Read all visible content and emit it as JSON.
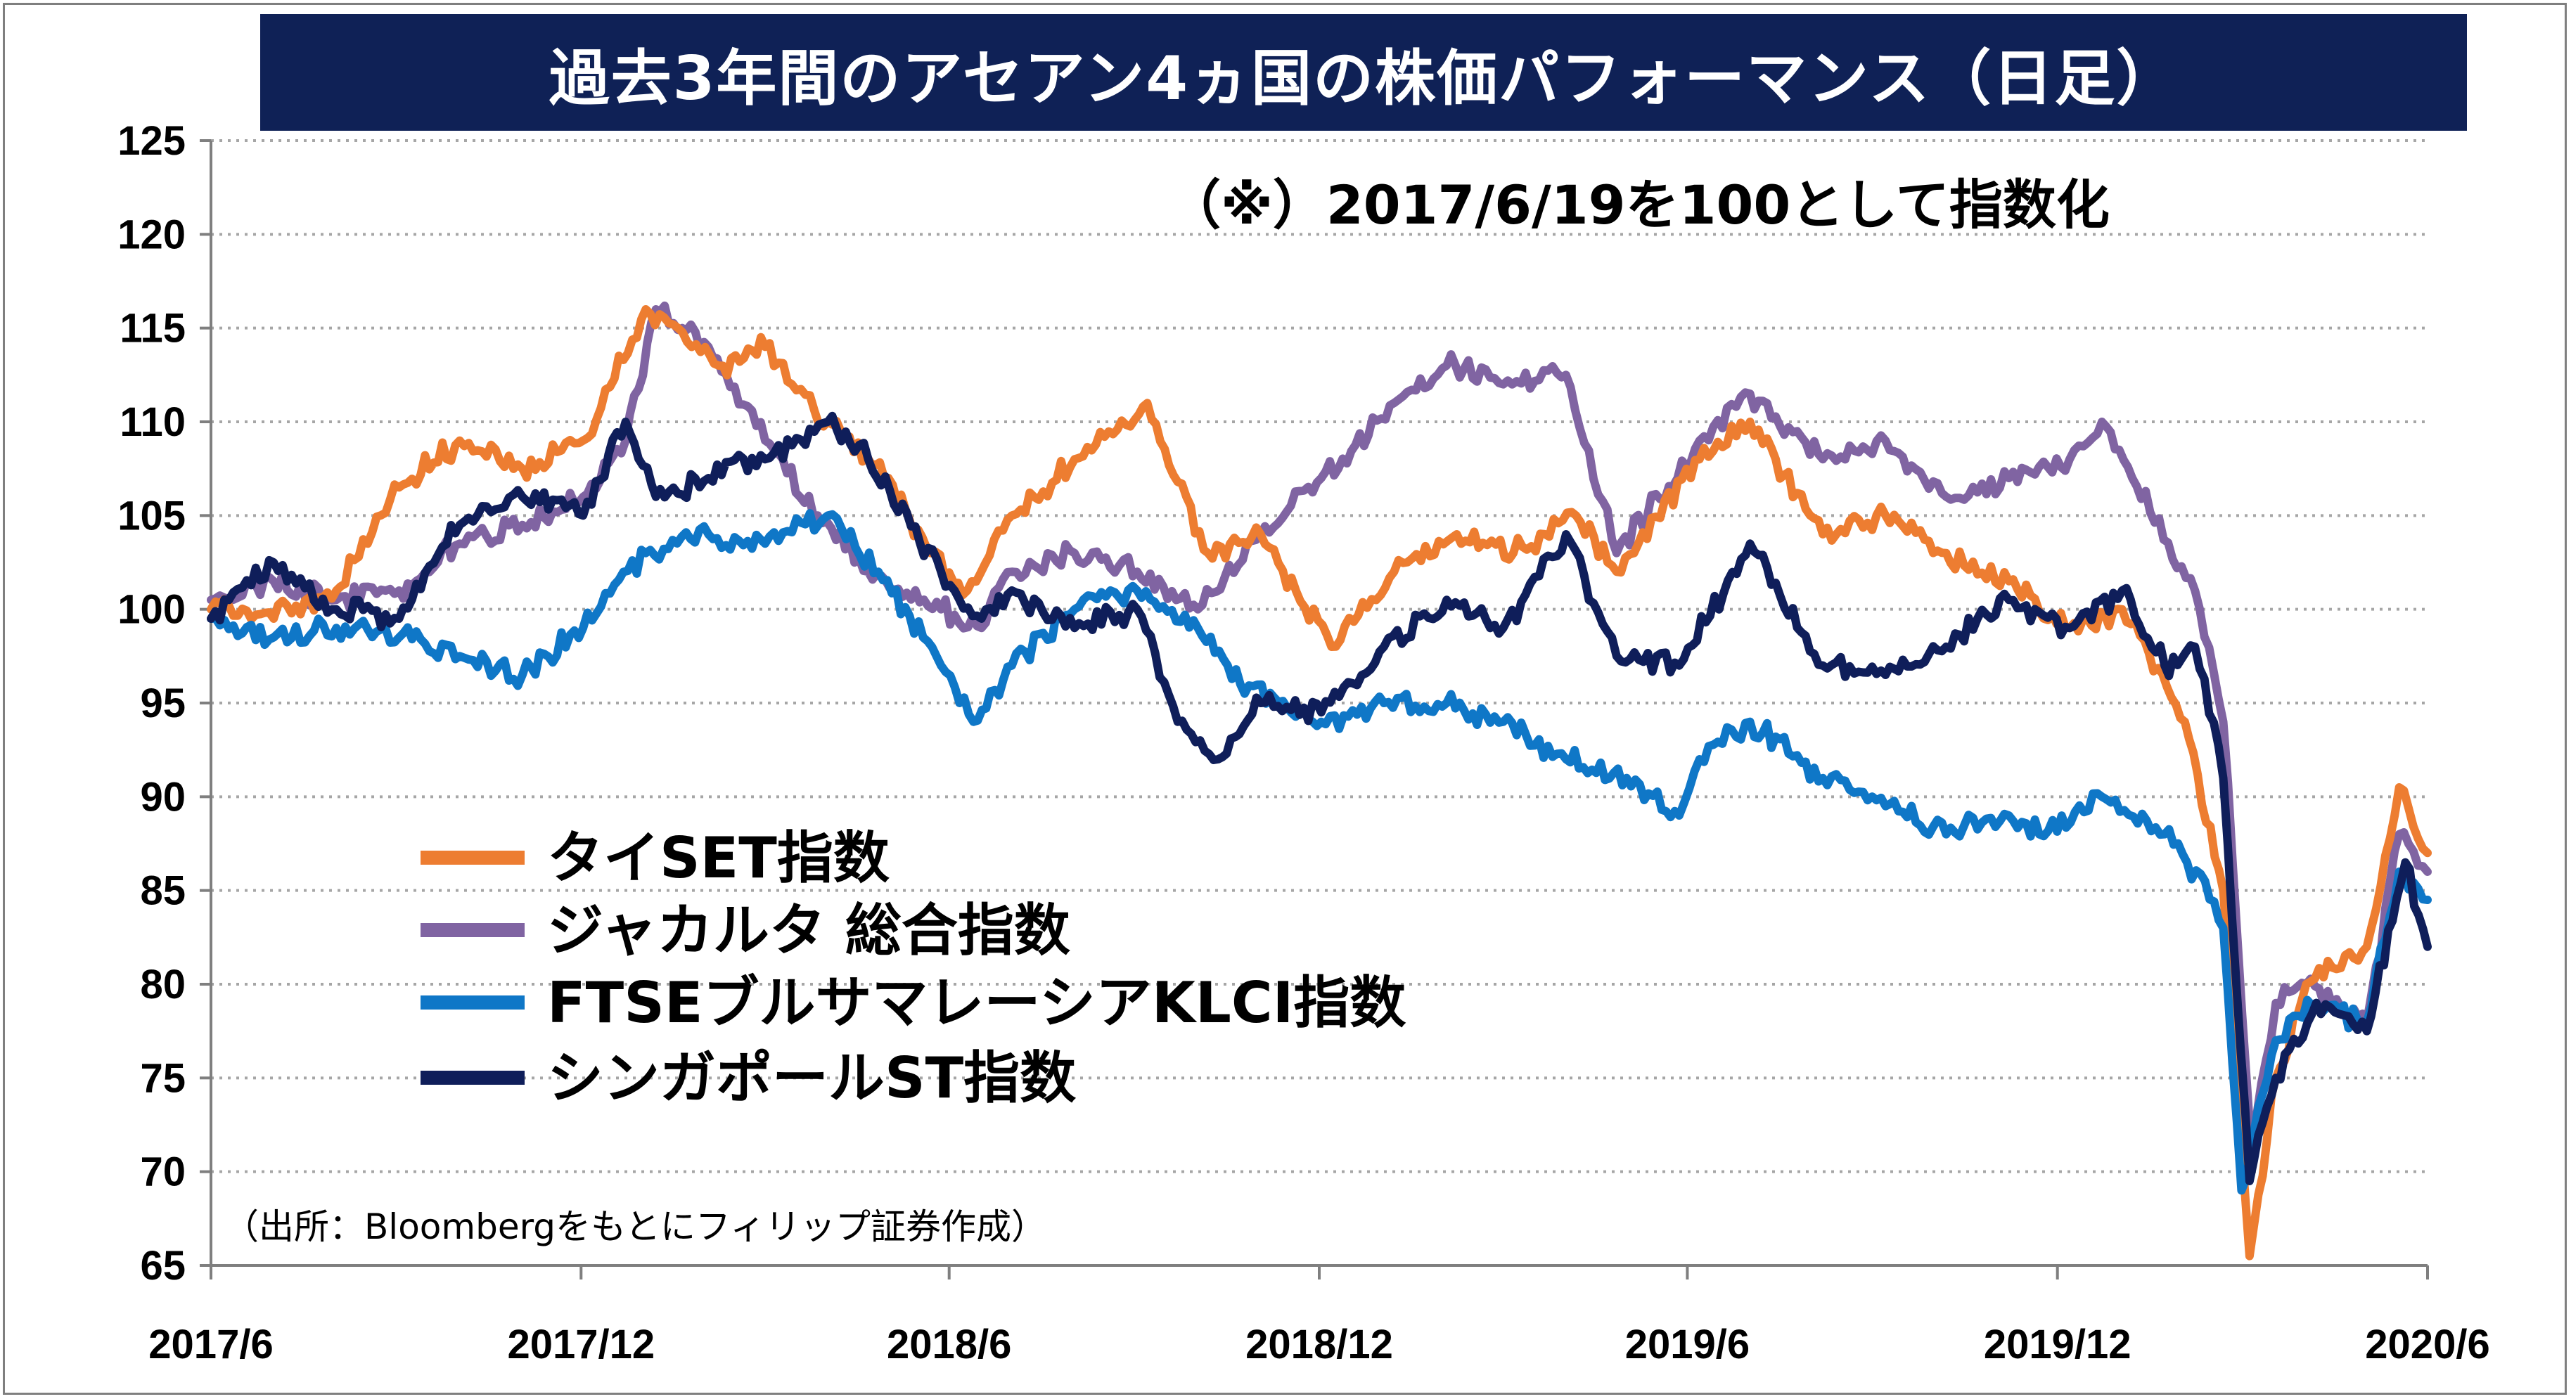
{
  "title": "過去3年間のアセアン4ヵ国の株価パフォーマンス（日足）",
  "note": "（※）2017/6/19を100として指数化",
  "source": "（出所：Bloombergをもとにフィリップ証券作成）",
  "colors": {
    "title_background": "#0f2156",
    "frame": "#7f7f7f",
    "grid": "#a6a6a6"
  },
  "chart_data": {
    "type": "line",
    "grid": true,
    "grid_style": "dotted horizontal",
    "legend_position": "center-left",
    "ylim": [
      65,
      125
    ],
    "yticks": [
      65,
      70,
      75,
      80,
      85,
      90,
      95,
      100,
      105,
      110,
      115,
      120,
      125
    ],
    "xlim": [
      "2017-06-19",
      "2020-06-19"
    ],
    "xticks": [
      {
        "date": "2017-06-19",
        "label": "2017/6"
      },
      {
        "date": "2017-12-19",
        "label": "2017/12"
      },
      {
        "date": "2018-06-19",
        "label": "2018/6"
      },
      {
        "date": "2018-12-19",
        "label": "2018/12"
      },
      {
        "date": "2019-06-19",
        "label": "2019/6"
      },
      {
        "date": "2019-12-19",
        "label": "2019/12"
      },
      {
        "date": "2020-06-19",
        "label": "2020/6"
      }
    ],
    "series": [
      {
        "name": "タイSET指数",
        "color": "#ed7d31",
        "points": [
          [
            "2017-06-19",
            100
          ],
          [
            "2017-07-20",
            99.5
          ],
          [
            "2017-08-20",
            101
          ],
          [
            "2017-09-20",
            106.5
          ],
          [
            "2017-10-20",
            109
          ],
          [
            "2017-11-20",
            107.5
          ],
          [
            "2017-12-20",
            109
          ],
          [
            "2018-01-20",
            116
          ],
          [
            "2018-02-05",
            115
          ],
          [
            "2018-02-25",
            113
          ],
          [
            "2018-03-20",
            114
          ],
          [
            "2018-04-20",
            110
          ],
          [
            "2018-05-20",
            107
          ],
          [
            "2018-06-10",
            103
          ],
          [
            "2018-06-28",
            101
          ],
          [
            "2018-07-20",
            105
          ],
          [
            "2018-08-20",
            108
          ],
          [
            "2018-09-25",
            111
          ],
          [
            "2018-10-25",
            103
          ],
          [
            "2018-11-20",
            104
          ],
          [
            "2018-12-25",
            98
          ],
          [
            "2019-01-25",
            102
          ],
          [
            "2019-02-25",
            104
          ],
          [
            "2019-03-25",
            103
          ],
          [
            "2019-04-25",
            105
          ],
          [
            "2019-05-15",
            102
          ],
          [
            "2019-06-25",
            108
          ],
          [
            "2019-07-20",
            110
          ],
          [
            "2019-08-25",
            104
          ],
          [
            "2019-09-25",
            105
          ],
          [
            "2019-10-25",
            103
          ],
          [
            "2019-11-25",
            101.5
          ],
          [
            "2019-12-25",
            99
          ],
          [
            "2020-01-20",
            100
          ],
          [
            "2020-02-20",
            94
          ],
          [
            "2020-03-10",
            85
          ],
          [
            "2020-03-23",
            65.5
          ],
          [
            "2020-04-05",
            75
          ],
          [
            "2020-04-20",
            80
          ],
          [
            "2020-05-20",
            82
          ],
          [
            "2020-06-05",
            90.5
          ],
          [
            "2020-06-19",
            87
          ]
        ]
      },
      {
        "name": "ジャカルタ 総合指数",
        "color": "#8064a2",
        "points": [
          [
            "2017-06-19",
            100.5
          ],
          [
            "2017-07-20",
            101.5
          ],
          [
            "2017-08-20",
            100.5
          ],
          [
            "2017-09-20",
            101
          ],
          [
            "2017-10-20",
            103.5
          ],
          [
            "2017-11-20",
            104.5
          ],
          [
            "2017-12-20",
            106
          ],
          [
            "2018-01-10",
            109
          ],
          [
            "2018-01-25",
            116
          ],
          [
            "2018-02-20",
            114
          ],
          [
            "2018-03-20",
            109
          ],
          [
            "2018-04-15",
            105
          ],
          [
            "2018-05-10",
            102
          ],
          [
            "2018-06-15",
            100
          ],
          [
            "2018-07-05",
            99
          ],
          [
            "2018-07-20",
            102
          ],
          [
            "2018-08-20",
            103
          ],
          [
            "2018-09-20",
            102
          ],
          [
            "2018-10-20",
            100
          ],
          [
            "2018-11-20",
            104
          ],
          [
            "2018-12-20",
            107
          ],
          [
            "2019-01-25",
            111
          ],
          [
            "2019-02-20",
            113
          ],
          [
            "2019-03-20",
            112
          ],
          [
            "2019-04-20",
            112.5
          ],
          [
            "2019-05-15",
            103
          ],
          [
            "2019-06-25",
            109
          ],
          [
            "2019-07-20",
            111.5
          ],
          [
            "2019-08-25",
            108
          ],
          [
            "2019-09-25",
            109
          ],
          [
            "2019-10-25",
            106
          ],
          [
            "2019-11-25",
            107
          ],
          [
            "2019-12-25",
            108
          ],
          [
            "2020-01-10",
            110
          ],
          [
            "2020-01-25",
            107
          ],
          [
            "2020-02-25",
            101
          ],
          [
            "2020-03-10",
            94
          ],
          [
            "2020-03-24",
            71
          ],
          [
            "2020-04-05",
            79
          ],
          [
            "2020-04-20",
            80
          ],
          [
            "2020-05-20",
            78
          ],
          [
            "2020-06-05",
            88
          ],
          [
            "2020-06-19",
            86
          ]
        ]
      },
      {
        "name": "FTSEブルサマレーシアKLCI指数",
        "color": "#0f77c7",
        "points": [
          [
            "2017-06-19",
            99.5
          ],
          [
            "2017-07-20",
            98.5
          ],
          [
            "2017-08-20",
            99
          ],
          [
            "2017-09-20",
            98.5
          ],
          [
            "2017-10-20",
            97.5
          ],
          [
            "2017-11-20",
            96.5
          ],
          [
            "2017-12-20",
            99
          ],
          [
            "2018-01-20",
            103
          ],
          [
            "2018-02-20",
            104
          ],
          [
            "2018-03-20",
            103.5
          ],
          [
            "2018-04-20",
            105
          ],
          [
            "2018-05-15",
            102
          ],
          [
            "2018-06-15",
            97
          ],
          [
            "2018-07-01",
            94
          ],
          [
            "2018-07-20",
            97
          ],
          [
            "2018-08-20",
            100
          ],
          [
            "2018-09-20",
            101
          ],
          [
            "2018-10-20",
            99
          ],
          [
            "2018-11-10",
            96
          ],
          [
            "2018-12-20",
            94
          ],
          [
            "2019-01-20",
            95
          ],
          [
            "2019-02-20",
            95
          ],
          [
            "2019-03-20",
            94
          ],
          [
            "2019-04-20",
            92
          ],
          [
            "2019-05-20",
            91
          ],
          [
            "2019-06-15",
            89
          ],
          [
            "2019-06-25",
            92
          ],
          [
            "2019-07-20",
            94
          ],
          [
            "2019-08-25",
            91
          ],
          [
            "2019-09-25",
            89.5
          ],
          [
            "2019-10-25",
            88
          ],
          [
            "2019-11-25",
            89
          ],
          [
            "2019-12-10",
            88
          ],
          [
            "2020-01-10",
            90
          ],
          [
            "2020-02-10",
            88
          ],
          [
            "2020-03-01",
            85.5
          ],
          [
            "2020-03-10",
            83
          ],
          [
            "2020-03-19",
            69
          ],
          [
            "2020-04-05",
            77
          ],
          [
            "2020-04-25",
            79
          ],
          [
            "2020-05-20",
            78
          ],
          [
            "2020-06-05",
            86
          ],
          [
            "2020-06-19",
            84.5
          ]
        ]
      },
      {
        "name": "シンガポールST指数",
        "color": "#0f1e5a",
        "points": [
          [
            "2017-06-19",
            99.5
          ],
          [
            "2017-07-20",
            102.5
          ],
          [
            "2017-08-20",
            100
          ],
          [
            "2017-09-20",
            99.5
          ],
          [
            "2017-10-20",
            104.5
          ],
          [
            "2017-11-20",
            106
          ],
          [
            "2017-12-20",
            105
          ],
          [
            "2018-01-10",
            110
          ],
          [
            "2018-01-25",
            106
          ],
          [
            "2018-02-20",
            107
          ],
          [
            "2018-03-20",
            108
          ],
          [
            "2018-04-20",
            110
          ],
          [
            "2018-05-10",
            108
          ],
          [
            "2018-06-15",
            102
          ],
          [
            "2018-07-05",
            99.5
          ],
          [
            "2018-07-20",
            101
          ],
          [
            "2018-08-20",
            99
          ],
          [
            "2018-09-20",
            100
          ],
          [
            "2018-10-10",
            94
          ],
          [
            "2018-10-30",
            92
          ],
          [
            "2018-11-20",
            95
          ],
          [
            "2018-12-20",
            94.5
          ],
          [
            "2019-01-20",
            98
          ],
          [
            "2019-02-20",
            100.5
          ],
          [
            "2019-03-20",
            99
          ],
          [
            "2019-04-20",
            104
          ],
          [
            "2019-05-15",
            97.5
          ],
          [
            "2019-06-15",
            97
          ],
          [
            "2019-07-20",
            103.5
          ],
          [
            "2019-08-25",
            97
          ],
          [
            "2019-09-25",
            96.5
          ],
          [
            "2019-10-25",
            98
          ],
          [
            "2019-11-25",
            100.5
          ],
          [
            "2019-12-25",
            99
          ],
          [
            "2020-01-20",
            101
          ],
          [
            "2020-02-10",
            97
          ],
          [
            "2020-02-25",
            98
          ],
          [
            "2020-03-10",
            91
          ],
          [
            "2020-03-23",
            69.5
          ],
          [
            "2020-04-05",
            75
          ],
          [
            "2020-04-25",
            79
          ],
          [
            "2020-05-20",
            77.5
          ],
          [
            "2020-06-08",
            86.5
          ],
          [
            "2020-06-19",
            82
          ]
        ]
      }
    ]
  }
}
